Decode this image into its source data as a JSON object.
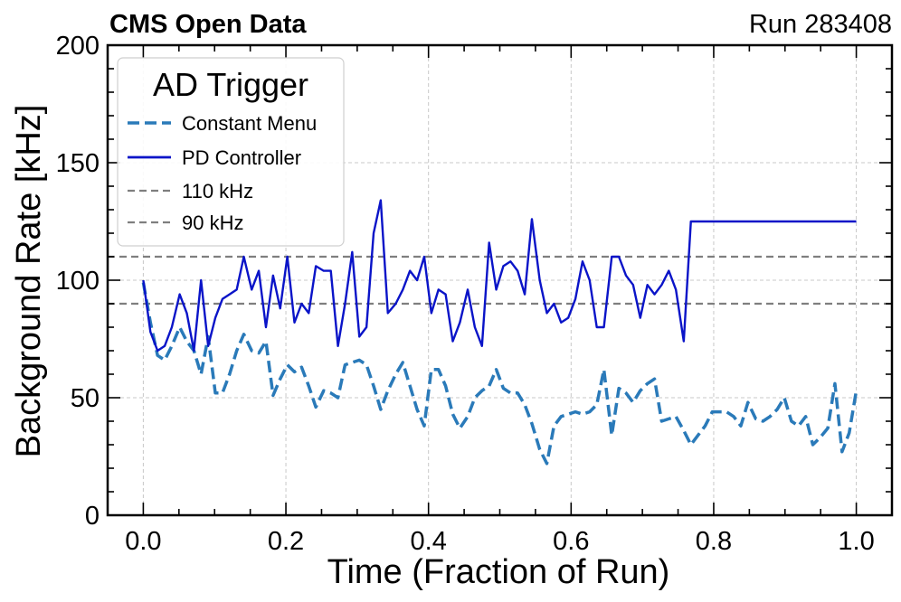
{
  "header": {
    "experiment": "CMS Open Data",
    "run": "Run 283408"
  },
  "colors": {
    "constant": "#2a7ab9",
    "pd": "#0a14c8",
    "reference": "#7f7f7f",
    "grid": "#c8c8c8"
  },
  "chart_data": {
    "type": "line",
    "xlabel": "Time (Fraction of Run)",
    "ylabel": "Background Rate [kHz]",
    "xlim": [
      -0.05,
      1.05
    ],
    "ylim": [
      0,
      200
    ],
    "xticks": [
      0.0,
      0.2,
      0.4,
      0.6,
      0.8,
      1.0
    ],
    "xtick_labels": [
      "0.0",
      "0.2",
      "0.4",
      "0.6",
      "0.8",
      "1.0"
    ],
    "yticks": [
      0,
      50,
      100,
      150,
      200
    ],
    "ytick_labels": [
      "0",
      "50",
      "100",
      "150",
      "200"
    ],
    "grid": true,
    "legend": {
      "title": "AD Trigger",
      "position": "top-left",
      "entries": [
        "Constant Menu",
        "PD Controller",
        "110 kHz",
        "90 kHz"
      ]
    },
    "hlines": [
      {
        "name": "110 kHz",
        "y": 110
      },
      {
        "name": "90 kHz",
        "y": 90
      }
    ],
    "series": [
      {
        "name": "Constant Menu",
        "style": "dashed",
        "x": [
          0.0,
          0.01,
          0.02,
          0.03,
          0.04,
          0.051,
          0.061,
          0.071,
          0.081,
          0.091,
          0.101,
          0.111,
          0.121,
          0.131,
          0.141,
          0.152,
          0.162,
          0.172,
          0.182,
          0.192,
          0.202,
          0.212,
          0.222,
          0.232,
          0.242,
          0.253,
          0.263,
          0.273,
          0.283,
          0.293,
          0.303,
          0.313,
          0.323,
          0.333,
          0.343,
          0.354,
          0.364,
          0.374,
          0.384,
          0.394,
          0.404,
          0.414,
          0.424,
          0.434,
          0.444,
          0.455,
          0.465,
          0.475,
          0.485,
          0.495,
          0.505,
          0.515,
          0.525,
          0.535,
          0.545,
          0.556,
          0.566,
          0.576,
          0.586,
          0.596,
          0.606,
          0.616,
          0.626,
          0.636,
          0.646,
          0.657,
          0.667,
          0.677,
          0.687,
          0.697,
          0.707,
          0.717,
          0.727,
          0.737,
          0.747,
          0.758,
          0.768,
          0.778,
          0.788,
          0.798,
          0.808,
          0.818,
          0.828,
          0.838,
          0.848,
          0.859,
          0.869,
          0.879,
          0.889,
          0.899,
          0.909,
          0.919,
          0.929,
          0.939,
          0.949,
          0.96,
          0.97,
          0.98,
          0.99,
          1.0
        ],
        "y": [
          99,
          82,
          68,
          66,
          72,
          80,
          74,
          70,
          60,
          76,
          52,
          52,
          60,
          70,
          77,
          70,
          69,
          74,
          51,
          58,
          64,
          61,
          63,
          55,
          46,
          53,
          52,
          50,
          64,
          65,
          66,
          64,
          55,
          45,
          53,
          60,
          65,
          55,
          45,
          38,
          62,
          62,
          55,
          43,
          37,
          42,
          50,
          53,
          55,
          62,
          54,
          52,
          52,
          47,
          39,
          28,
          22,
          38,
          42,
          43,
          44,
          43,
          44,
          47,
          62,
          34,
          54,
          52,
          48,
          53,
          56,
          58,
          40,
          41,
          42,
          36,
          30,
          34,
          38,
          44,
          44,
          44,
          42,
          38,
          48,
          41,
          40,
          42,
          45,
          50,
          40,
          38,
          42,
          30,
          33,
          37,
          56,
          27,
          35,
          53
        ]
      },
      {
        "name": "PD Controller",
        "style": "solid",
        "x": [
          0.0,
          0.01,
          0.02,
          0.03,
          0.04,
          0.051,
          0.061,
          0.071,
          0.081,
          0.091,
          0.101,
          0.111,
          0.121,
          0.131,
          0.141,
          0.152,
          0.162,
          0.172,
          0.182,
          0.192,
          0.202,
          0.212,
          0.222,
          0.232,
          0.242,
          0.253,
          0.263,
          0.273,
          0.283,
          0.293,
          0.303,
          0.313,
          0.323,
          0.333,
          0.343,
          0.354,
          0.364,
          0.374,
          0.384,
          0.394,
          0.404,
          0.414,
          0.424,
          0.434,
          0.444,
          0.455,
          0.465,
          0.475,
          0.485,
          0.495,
          0.505,
          0.515,
          0.525,
          0.535,
          0.545,
          0.556,
          0.566,
          0.576,
          0.586,
          0.596,
          0.606,
          0.616,
          0.626,
          0.636,
          0.646,
          0.657,
          0.667,
          0.677,
          0.687,
          0.697,
          0.707,
          0.717,
          0.727,
          0.737,
          0.747,
          0.758,
          0.768,
          0.778,
          0.788,
          0.798,
          0.808,
          0.818,
          0.828,
          0.838,
          0.848,
          0.859,
          0.869,
          0.879,
          0.889,
          0.899,
          0.909,
          0.919,
          0.929,
          0.939,
          0.949,
          0.96,
          0.97,
          0.98,
          0.99,
          1.0
        ],
        "y": [
          100,
          78,
          70,
          72,
          80,
          94,
          86,
          70,
          100,
          72,
          84,
          92,
          94,
          96,
          110,
          96,
          104,
          80,
          102,
          88,
          110,
          82,
          90,
          86,
          106,
          104,
          104,
          72,
          90,
          112,
          76,
          80,
          120,
          134,
          86,
          90,
          96,
          104,
          100,
          110,
          86,
          96,
          94,
          74,
          82,
          96,
          80,
          72,
          116,
          96,
          106,
          108,
          104,
          94,
          126,
          100,
          86,
          90,
          82,
          84,
          92,
          108,
          100,
          80,
          80,
          110,
          110,
          102,
          98,
          84,
          98,
          94,
          98,
          104,
          96,
          74,
          125,
          125,
          125,
          125,
          125,
          125,
          125,
          125,
          125,
          125,
          125,
          125,
          125,
          125,
          125,
          125,
          125,
          125,
          125,
          125,
          125,
          125,
          125,
          125
        ]
      }
    ]
  }
}
